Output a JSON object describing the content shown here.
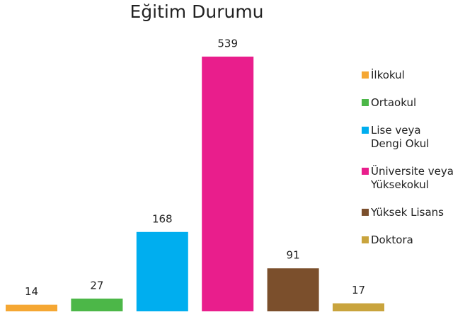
{
  "chart_data": {
    "type": "bar",
    "title": "Eğitim Durumu",
    "categories": [
      "İlkokul",
      "Ortaokul",
      "Lise veya Dengi Okul",
      "Üniversite veya Yüksekokul",
      "Yüksek Lisans",
      "Doktora"
    ],
    "values": [
      14,
      27,
      168,
      539,
      91,
      17
    ],
    "colors": [
      "#f5a733",
      "#4cb748",
      "#00aeef",
      "#e91e8c",
      "#7b4f2c",
      "#c9a43d"
    ],
    "legend": "right"
  }
}
